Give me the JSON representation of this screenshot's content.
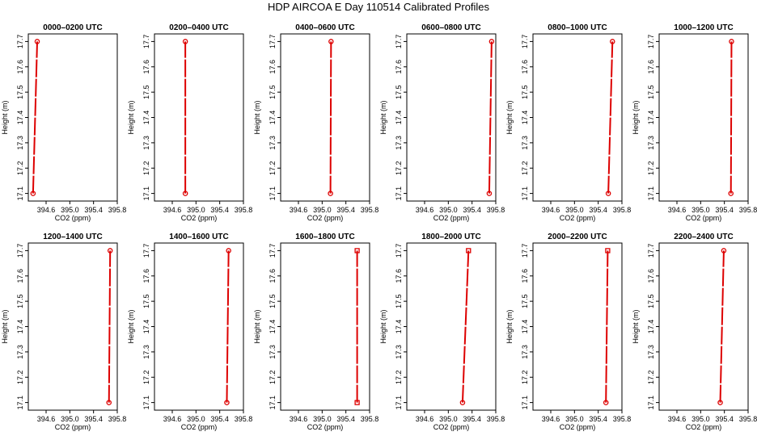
{
  "title": "HDP AIRCOA E  Day 110514  Calibrated Profiles",
  "colors": {
    "line": "#dd0000",
    "frame": "#000000",
    "background": "#ffffff"
  },
  "chart_data": {
    "type": "line",
    "layout": "2x6 small multiples",
    "xlabel": "CO2 (ppm)",
    "ylabel": "Height (m)",
    "xlim": [
      394.3,
      395.8
    ],
    "ylim": [
      17.07,
      17.73
    ],
    "xticks": [
      "394.6",
      "395.0",
      "395.4",
      "395.8"
    ],
    "yticks": [
      "17.1",
      "17.2",
      "17.3",
      "17.4",
      "17.5",
      "17.6",
      "17.7"
    ],
    "grid": false,
    "panels": [
      {
        "title": "0000–0200 UTC",
        "points": [
          {
            "co2": 394.38,
            "height": 17.1
          },
          {
            "co2": 394.45,
            "height": 17.7
          }
        ]
      },
      {
        "title": "0200–0400 UTC",
        "points": [
          {
            "co2": 394.82,
            "height": 17.1
          },
          {
            "co2": 394.82,
            "height": 17.7
          }
        ]
      },
      {
        "title": "0400–0600 UTC",
        "points": [
          {
            "co2": 395.14,
            "height": 17.1
          },
          {
            "co2": 395.15,
            "height": 17.7
          }
        ]
      },
      {
        "title": "0600–0800 UTC",
        "points": [
          {
            "co2": 395.69,
            "height": 17.1
          },
          {
            "co2": 395.73,
            "height": 17.7
          }
        ]
      },
      {
        "title": "0800–1000 UTC",
        "points": [
          {
            "co2": 395.57,
            "height": 17.1
          },
          {
            "co2": 395.64,
            "height": 17.7
          }
        ]
      },
      {
        "title": "1000–1200 UTC",
        "points": [
          {
            "co2": 395.51,
            "height": 17.1
          },
          {
            "co2": 395.52,
            "height": 17.7
          }
        ]
      },
      {
        "title": "1200–1400 UTC",
        "points": [
          {
            "co2": 395.66,
            "height": 17.1
          },
          {
            "co2": 395.68,
            "height": 17.7
          }
        ]
      },
      {
        "title": "1400–1600 UTC",
        "points": [
          {
            "co2": 395.52,
            "height": 17.1
          },
          {
            "co2": 395.55,
            "height": 17.7
          }
        ]
      },
      {
        "title": "1600–1800 UTC",
        "points": [
          {
            "co2": 395.59,
            "height": 17.1
          },
          {
            "co2": 395.59,
            "height": 17.7
          }
        ]
      },
      {
        "title": "1800–2000 UTC",
        "points": [
          {
            "co2": 395.24,
            "height": 17.1
          },
          {
            "co2": 395.34,
            "height": 17.7
          }
        ]
      },
      {
        "title": "2000–2200 UTC",
        "points": [
          {
            "co2": 395.53,
            "height": 17.1
          },
          {
            "co2": 395.56,
            "height": 17.7
          }
        ]
      },
      {
        "title": "2200–2400 UTC",
        "points": [
          {
            "co2": 395.33,
            "height": 17.1
          },
          {
            "co2": 395.39,
            "height": 17.7
          }
        ]
      }
    ]
  }
}
